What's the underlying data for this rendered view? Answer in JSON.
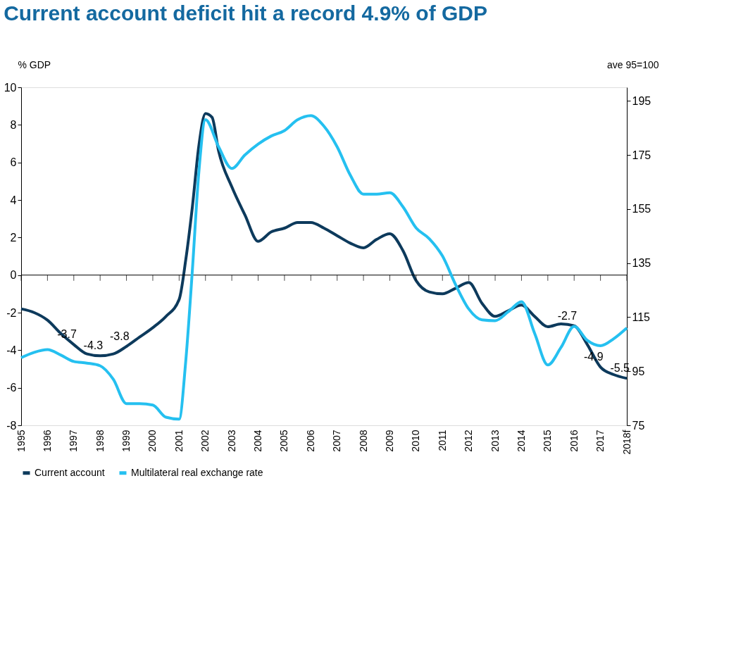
{
  "chart_data": {
    "type": "line",
    "title": "Current account deficit hit a record 4.9% of GDP",
    "ylabel": "% GDP",
    "y2label": "ave 95=100",
    "xlim": [
      1995,
      2018
    ],
    "xticks": [
      1995,
      1996,
      1997,
      1998,
      1999,
      2000,
      2001,
      2002,
      2003,
      2004,
      2005,
      2006,
      2007,
      2008,
      2009,
      2010,
      2011,
      2012,
      2013,
      2014,
      2015,
      2016,
      2017,
      {
        "value": 2018,
        "label": "2018f"
      }
    ],
    "ylim": [
      -8,
      10
    ],
    "yticks": [
      -8,
      -6,
      -4,
      -2,
      0,
      2,
      4,
      6,
      8,
      10
    ],
    "y2lim": [
      75,
      200
    ],
    "y2ticks": [
      75,
      95,
      115,
      135,
      155,
      175,
      195
    ],
    "grid": false,
    "legend": "bottom",
    "marker": "none",
    "line_style": "solid",
    "ref_lines": [
      {
        "axis": "y",
        "value": 0,
        "color": "#000000"
      }
    ],
    "series": [
      {
        "name": "Current account",
        "color": "#0d3a5c",
        "axis": "y",
        "x": [
          1995,
          1995.5,
          1996,
          1996.5,
          1997,
          1997.5,
          1998,
          1998.5,
          1999,
          1999.5,
          2000,
          2000.5,
          2001,
          2001.25,
          2001.5,
          2001.75,
          2002,
          2002.25,
          2002.5,
          2003,
          2003.5,
          2004,
          2004.5,
          2005,
          2005.5,
          2006,
          2006.5,
          2007,
          2007.5,
          2008,
          2008.5,
          2009,
          2009.5,
          2010,
          2010.5,
          2011,
          2011.5,
          2012,
          2012.5,
          2013,
          2013.5,
          2014,
          2014.5,
          2015,
          2015.5,
          2016,
          2016.5,
          2017,
          2017.5,
          2018
        ],
        "values": [
          -1.8,
          -2.0,
          -2.4,
          -3.1,
          -3.7,
          -4.2,
          -4.3,
          -4.2,
          -3.8,
          -3.3,
          -2.8,
          -2.2,
          -1.3,
          0.8,
          3.6,
          6.9,
          8.6,
          8.4,
          6.6,
          4.7,
          3.2,
          1.8,
          2.3,
          2.5,
          2.8,
          2.8,
          2.5,
          2.1,
          1.7,
          1.45,
          1.9,
          2.2,
          1.3,
          -0.3,
          -0.9,
          -1.0,
          -0.7,
          -0.4,
          -1.5,
          -2.2,
          -1.9,
          -1.6,
          -2.2,
          -2.75,
          -2.6,
          -2.7,
          -3.7,
          -4.9,
          -5.3,
          -5.5
        ]
      },
      {
        "name": "Multilateral real exchange rate",
        "color": "#25c0f0",
        "axis": "y2",
        "x": [
          1995,
          1995.5,
          1996,
          1996.5,
          1997,
          1997.5,
          1998,
          1998.5,
          1999,
          1999.5,
          2000,
          2000.5,
          2001,
          2001.25,
          2001.5,
          2001.75,
          2002,
          2002.5,
          2003,
          2003.5,
          2004,
          2004.5,
          2005,
          2005.5,
          2006,
          2006.5,
          2007,
          2007.5,
          2008,
          2008.5,
          2009,
          2009.5,
          2010,
          2010.5,
          2011,
          2011.5,
          2012,
          2012.5,
          2013,
          2013.5,
          2014,
          2014.5,
          2015,
          2015.5,
          2016,
          2016.5,
          2017,
          2017.5,
          2018
        ],
        "values": [
          100,
          102,
          103,
          101,
          98.6,
          98,
          97,
          92,
          83,
          83,
          82.5,
          78,
          77.3,
          98.6,
          132,
          168.8,
          188,
          178,
          170,
          175,
          179,
          182,
          184,
          188,
          189.5,
          185.6,
          178,
          167.5,
          160.5,
          160.5,
          161,
          155.8,
          148,
          144,
          137.6,
          127,
          118,
          114,
          113.7,
          117,
          120.7,
          109,
          97.3,
          103.8,
          111.6,
          106.4,
          104.4,
          107,
          111
        ]
      }
    ],
    "annotations": [
      {
        "text": "-3.7",
        "x": 1997,
        "y": -3.7
      },
      {
        "text": "-4.3",
        "x": 1998,
        "y": -4.3
      },
      {
        "text": "-3.8",
        "x": 1999,
        "y": -3.8
      },
      {
        "text": "-2.7",
        "x": 2016,
        "y": -2.7
      },
      {
        "text": "-4.9",
        "x": 2017,
        "y": -4.9
      },
      {
        "text": "-5.5",
        "x": 2018,
        "y": -5.5
      }
    ]
  }
}
